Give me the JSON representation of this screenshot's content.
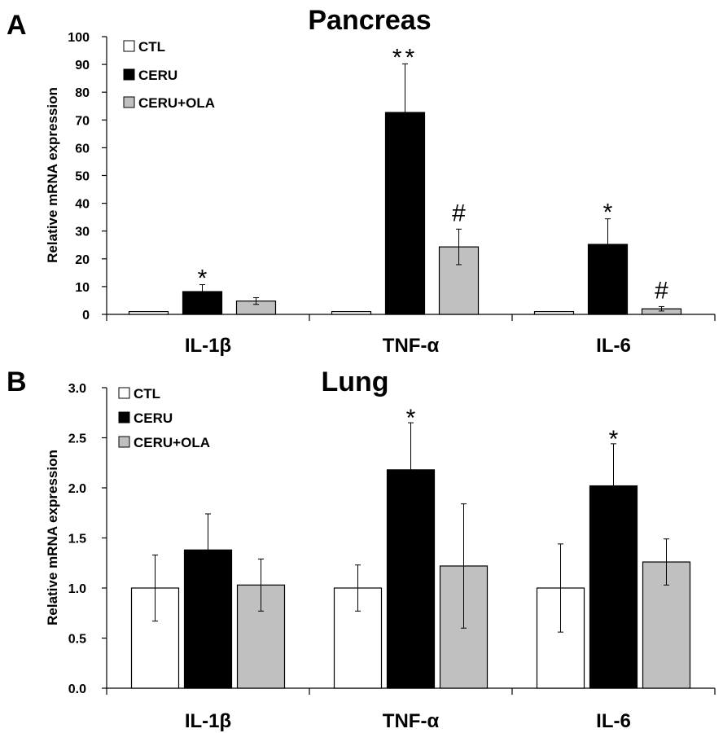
{
  "chart_data": [
    {
      "panel": "A",
      "type": "bar",
      "title": "Pancreas",
      "xlabel": "",
      "ylabel": "Relative mRNA expression",
      "ylim": [
        0,
        100
      ],
      "yticks": [
        0,
        10,
        20,
        30,
        40,
        50,
        60,
        70,
        80,
        90,
        100
      ],
      "tick_decimals": 0,
      "categories": [
        "IL-1β",
        "TNF-α",
        "IL-6"
      ],
      "legend_position": "top-left",
      "series": [
        {
          "name": "CTL",
          "color": "#ffffff",
          "values": [
            1,
            1,
            1
          ],
          "errors": [
            0,
            0,
            0
          ],
          "annotations": [
            "",
            "",
            ""
          ]
        },
        {
          "name": "CERU",
          "color": "#000000",
          "values": [
            8.2,
            72.7,
            25.2
          ],
          "errors": [
            2.5,
            17.5,
            9.2
          ],
          "annotations": [
            "*",
            "**",
            "*"
          ]
        },
        {
          "name": "CERU+OLA",
          "color": "#c0c0c0",
          "values": [
            4.8,
            24.3,
            2.0
          ],
          "errors": [
            1.2,
            6.4,
            0.8
          ],
          "annotations": [
            "",
            "#",
            "#"
          ]
        }
      ]
    },
    {
      "panel": "B",
      "type": "bar",
      "title": "Lung",
      "xlabel": "",
      "ylabel": "Relative mRNA expression",
      "ylim": [
        0,
        3.0
      ],
      "yticks": [
        0,
        0.5,
        1.0,
        1.5,
        2.0,
        2.5,
        3.0
      ],
      "tick_decimals": 1,
      "categories": [
        "IL-1β",
        "TNF-α",
        "IL-6"
      ],
      "legend_position": "top-left",
      "series": [
        {
          "name": "CTL",
          "color": "#ffffff",
          "values": [
            1.0,
            1.0,
            1.0
          ],
          "errors": [
            0.33,
            0.23,
            0.44
          ],
          "annotations": [
            "",
            "",
            ""
          ]
        },
        {
          "name": "CERU",
          "color": "#000000",
          "values": [
            1.38,
            2.18,
            2.02
          ],
          "errors": [
            0.36,
            0.47,
            0.42
          ],
          "annotations": [
            "",
            "*",
            "*"
          ]
        },
        {
          "name": "CERU+OLA",
          "color": "#c0c0c0",
          "values": [
            1.03,
            1.22,
            1.26
          ],
          "errors": [
            0.26,
            0.62,
            0.23
          ],
          "annotations": [
            "",
            "",
            ""
          ]
        }
      ]
    }
  ]
}
